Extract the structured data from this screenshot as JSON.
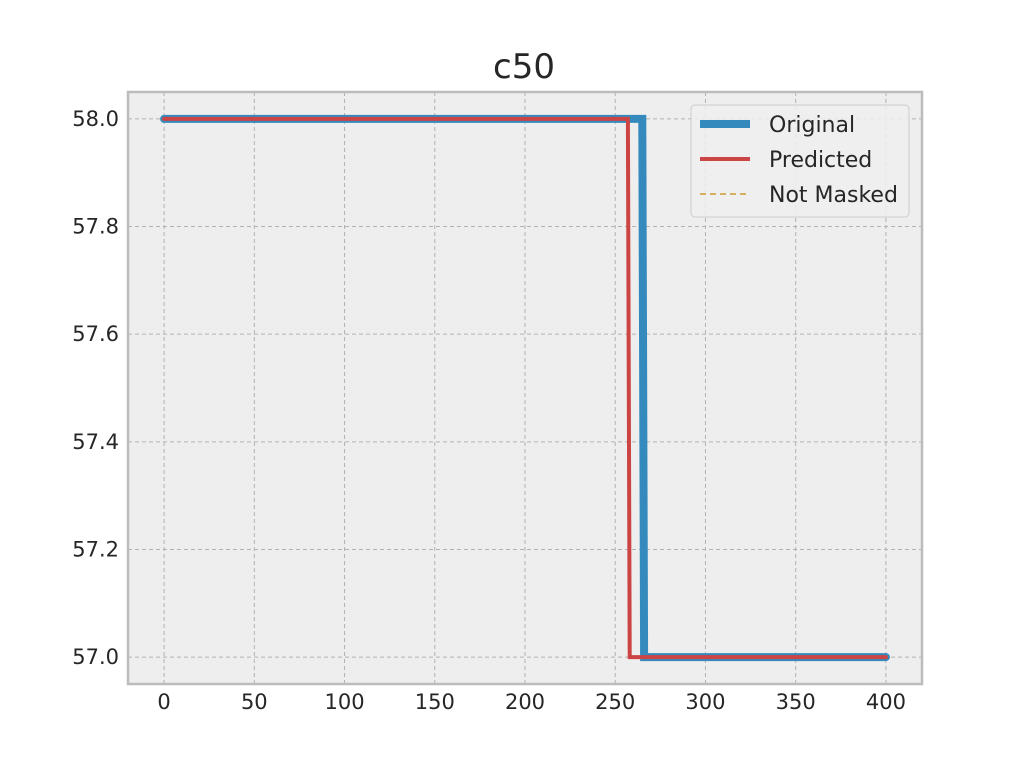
{
  "chart_data": {
    "type": "line",
    "title": "c50",
    "xlabel": "",
    "ylabel": "",
    "xlim": [
      -20,
      420
    ],
    "ylim": [
      56.95,
      58.05
    ],
    "xticks": [
      0,
      50,
      100,
      150,
      200,
      250,
      300,
      350,
      400
    ],
    "xtick_labels": [
      "0",
      "50",
      "100",
      "150",
      "200",
      "250",
      "300",
      "350",
      "400"
    ],
    "yticks": [
      57.0,
      57.2,
      57.4,
      57.6,
      57.8,
      58.0
    ],
    "ytick_labels": [
      "57.0",
      "57.2",
      "57.4",
      "57.6",
      "57.8",
      "58.0"
    ],
    "grid": true,
    "legend_position": "top-right",
    "series": [
      {
        "name": "Original",
        "color": "#348ABD",
        "style": "solid",
        "x": [
          0,
          265,
          266,
          400
        ],
        "y": [
          58.0,
          58.0,
          57.0,
          57.0
        ]
      },
      {
        "name": "Predicted",
        "color": "#CC4444",
        "style": "solid",
        "x": [
          0,
          257,
          258,
          400
        ],
        "y": [
          58.0,
          58.0,
          57.0,
          57.0
        ]
      },
      {
        "name": "Not Masked",
        "color": "#D4B060",
        "style": "dashed",
        "x": [],
        "y": []
      }
    ]
  }
}
